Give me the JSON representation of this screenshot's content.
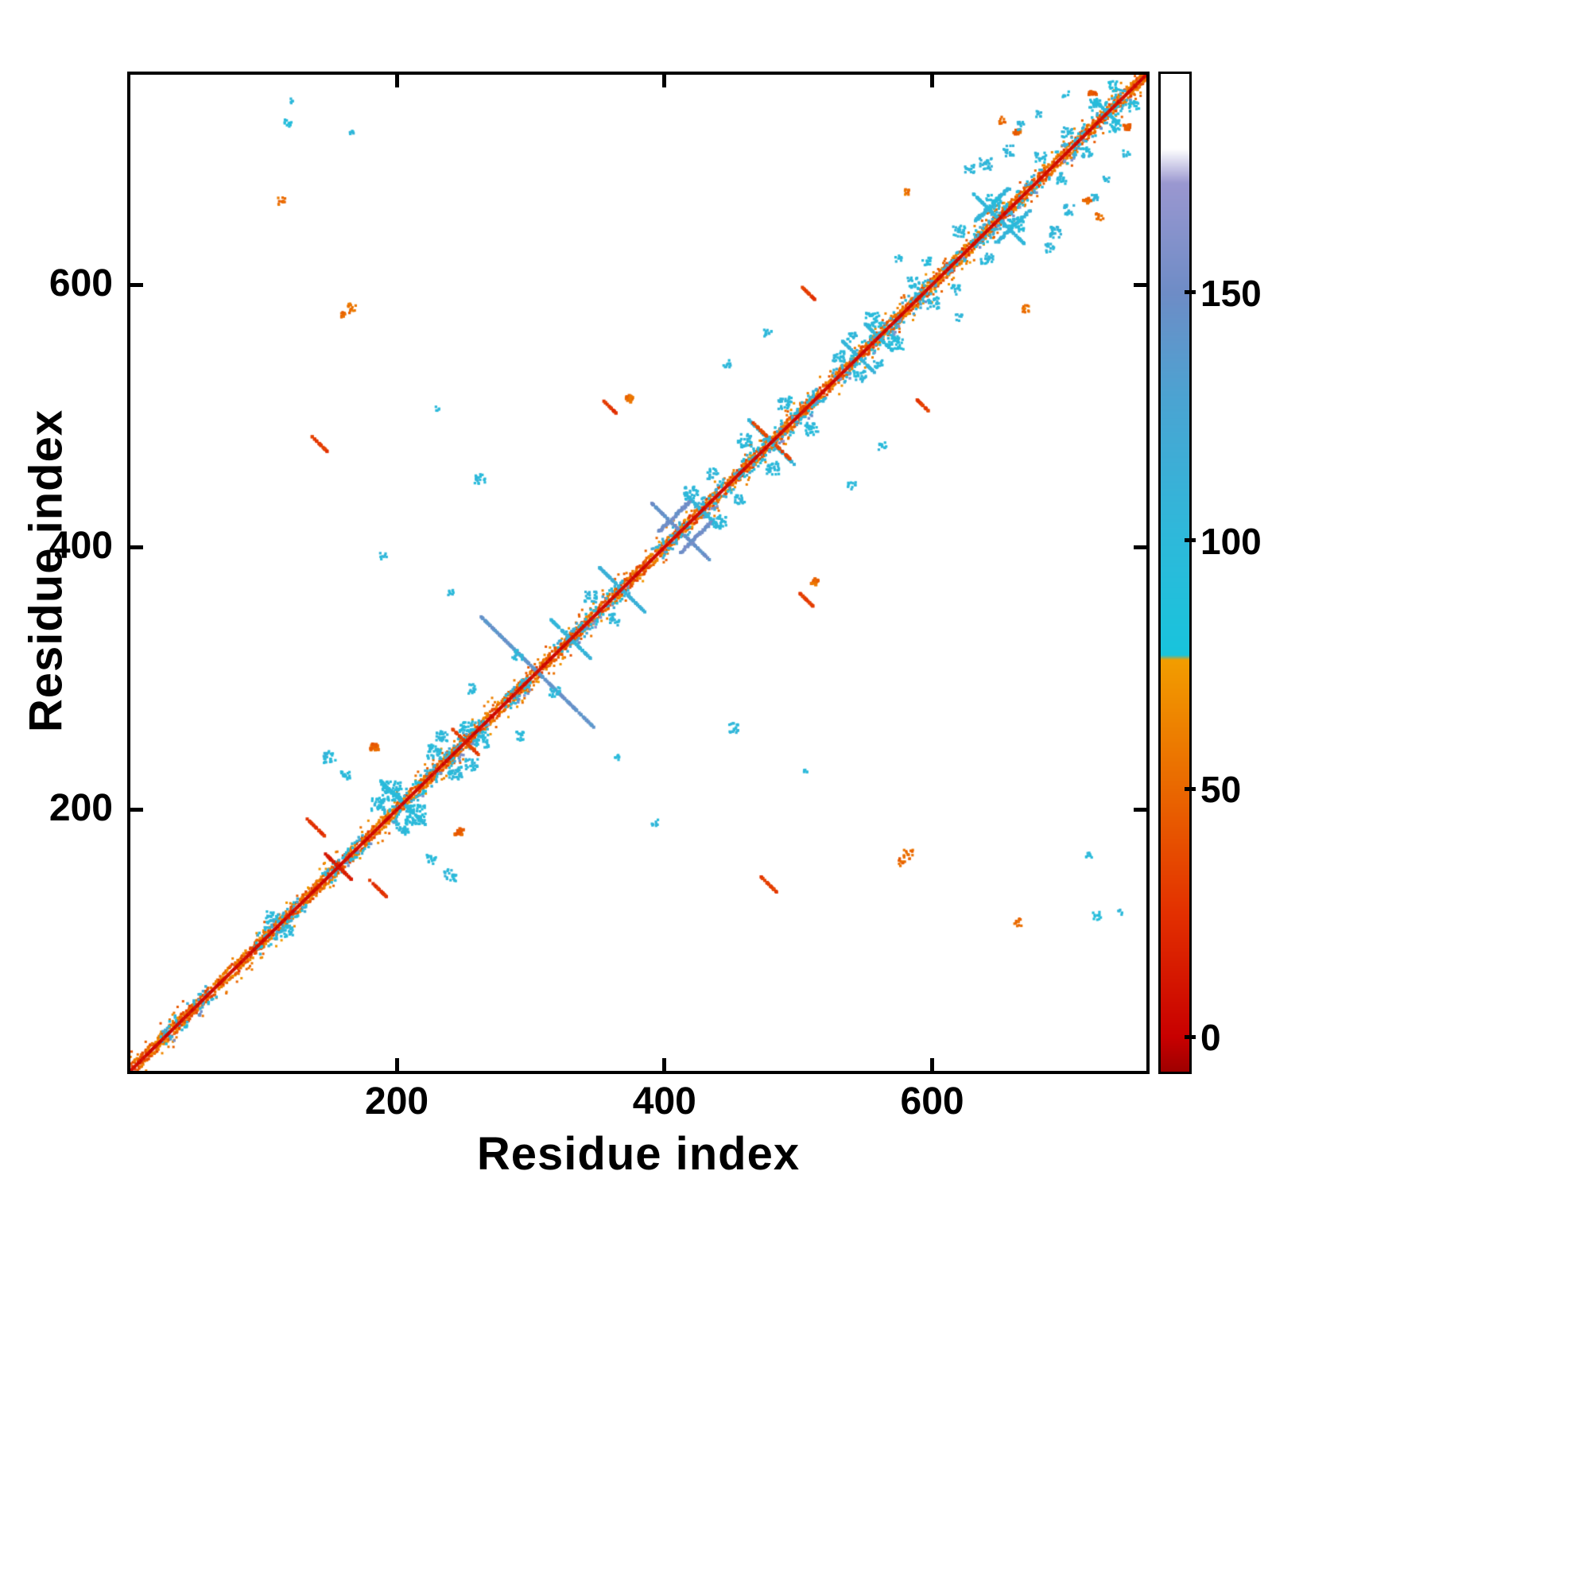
{
  "figure": {
    "background": "#ffffff",
    "border_color": "#000000"
  },
  "chart_data": {
    "type": "heatmap",
    "subtype": "protein-residue-contact-map",
    "title": "",
    "xlabel": "Residue index",
    "ylabel": "Residue index",
    "xlim": [
      1,
      760
    ],
    "ylim": [
      1,
      760
    ],
    "x_ticks": [
      200,
      400,
      600
    ],
    "y_ticks": [
      200,
      400,
      600
    ],
    "grid": false,
    "legend": "colorbar-right",
    "colorbar": {
      "ticks": [
        0,
        50,
        100,
        150
      ],
      "vmin": -7,
      "vmax": 194,
      "colormap_stops": [
        [
          -10,
          "#8c0000"
        ],
        [
          0,
          "#c80000"
        ],
        [
          25,
          "#e33000"
        ],
        [
          52,
          "#ea6c00"
        ],
        [
          76,
          "#f29d00"
        ],
        [
          77,
          "#18c4dc"
        ],
        [
          102,
          "#2fb8da"
        ],
        [
          128,
          "#4aa4d2"
        ],
        [
          150,
          "#6e8cc6"
        ],
        [
          172,
          "#9a97d0"
        ],
        [
          179,
          "#ffffff"
        ],
        [
          200,
          "#ffffff"
        ]
      ]
    },
    "diagonal": {
      "core_value_range": [
        0,
        14
      ],
      "flank_value_range": [
        28,
        72
      ],
      "cyan_segments": [
        [
          24,
          42
        ],
        [
          48,
          62
        ],
        [
          94,
          130
        ],
        [
          148,
          178
        ],
        [
          194,
          232
        ],
        [
          238,
          268
        ],
        [
          280,
          300
        ],
        [
          320,
          352
        ],
        [
          356,
          372
        ],
        [
          394,
          418
        ],
        [
          424,
          448
        ],
        [
          454,
          492
        ],
        [
          496,
          518
        ],
        [
          528,
          548
        ],
        [
          552,
          576
        ],
        [
          582,
          602
        ],
        [
          610,
          624
        ],
        [
          630,
          668
        ],
        [
          672,
          686
        ],
        [
          694,
          718
        ],
        [
          722,
          746
        ]
      ]
    },
    "clusters": [
      {
        "i": 305,
        "j": 305,
        "len": 84,
        "dir": "anti",
        "v": 142,
        "w": 3
      },
      {
        "i": 330,
        "j": 330,
        "len": 30,
        "dir": "anti",
        "v": 108,
        "w": 3
      },
      {
        "i": 368,
        "j": 368,
        "len": 34,
        "dir": "anti",
        "v": 112,
        "w": 3
      },
      {
        "i": 412,
        "j": 412,
        "len": 44,
        "dir": "anti",
        "v": 146,
        "w": 3
      },
      {
        "i": 428,
        "j": 428,
        "len": 26,
        "dir": "anti",
        "v": 106,
        "w": 3
      },
      {
        "i": 408,
        "j": 424,
        "len": 24,
        "dir": "par",
        "v": 150,
        "w": 2.5
      },
      {
        "i": 205,
        "j": 205,
        "len": 34,
        "dir": "anti",
        "v": 100,
        "w": 4
      },
      {
        "i": 480,
        "j": 480,
        "len": 34,
        "dir": "anti",
        "v": 102,
        "w": 4
      },
      {
        "i": 545,
        "j": 545,
        "len": 24,
        "dir": "anti",
        "v": 106,
        "w": 3
      },
      {
        "i": 560,
        "j": 560,
        "len": 20,
        "dir": "anti",
        "v": 104,
        "w": 3
      },
      {
        "i": 650,
        "j": 650,
        "len": 38,
        "dir": "anti",
        "v": 102,
        "w": 4
      },
      {
        "i": 645,
        "j": 661,
        "len": 26,
        "dir": "par",
        "v": 106,
        "w": 3
      },
      {
        "i": 731,
        "j": 731,
        "len": 18,
        "dir": "anti",
        "v": 100,
        "w": 3
      },
      {
        "i": 152,
        "j": 161,
        "len": 11,
        "dir": "anti",
        "v": 16,
        "w": 3
      },
      {
        "i": 140,
        "j": 186,
        "len": 13,
        "dir": "anti",
        "v": 26,
        "w": 3
      },
      {
        "i": 247,
        "j": 256,
        "len": 9,
        "dir": "anti",
        "v": 30,
        "w": 3
      },
      {
        "i": 183,
        "j": 247,
        "len": 9,
        "dir": "dot",
        "v": 48,
        "w": 3
      },
      {
        "i": 360,
        "j": 506,
        "len": 10,
        "dir": "anti",
        "v": 28,
        "w": 3
      },
      {
        "i": 374,
        "j": 513,
        "len": 8,
        "dir": "dot",
        "v": 52,
        "w": 3
      },
      {
        "i": 508,
        "j": 593,
        "len": 9,
        "dir": "anti",
        "v": 30,
        "w": 3
      },
      {
        "i": 143,
        "j": 478,
        "len": 12,
        "dir": "anti",
        "v": 30,
        "w": 3
      },
      {
        "i": 472,
        "j": 489,
        "len": 10,
        "dir": "anti",
        "v": 34,
        "w": 3
      },
      {
        "i": 166,
        "j": 582,
        "len": 7,
        "dir": "scatter",
        "v": 55,
        "w": 3
      },
      {
        "i": 160,
        "j": 577,
        "len": 6,
        "dir": "scatter",
        "v": 50,
        "w": 3
      },
      {
        "i": 582,
        "j": 670,
        "len": 6,
        "dir": "scatter",
        "v": 55,
        "w": 3
      },
      {
        "i": 652,
        "j": 725,
        "len": 6,
        "dir": "scatter",
        "v": 52,
        "w": 3
      },
      {
        "i": 664,
        "j": 716,
        "len": 7,
        "dir": "dot",
        "v": 48,
        "w": 3
      },
      {
        "i": 720,
        "j": 746,
        "len": 7,
        "dir": "dot",
        "v": 46,
        "w": 3
      },
      {
        "i": 114,
        "j": 664,
        "len": 6,
        "dir": "scatter",
        "v": 52,
        "w": 3
      },
      {
        "i": 119,
        "j": 723,
        "len": 6,
        "dir": "scatter",
        "v": 88,
        "w": 3
      },
      {
        "i": 107,
        "j": 118,
        "len": 9,
        "dir": "scatter",
        "v": 100,
        "w": 3
      },
      {
        "i": 150,
        "j": 240,
        "len": 9,
        "dir": "scatter",
        "v": 100,
        "w": 3
      },
      {
        "i": 162,
        "j": 226,
        "len": 7,
        "dir": "scatter",
        "v": 98,
        "w": 3
      },
      {
        "i": 196,
        "j": 214,
        "len": 15,
        "dir": "scatter",
        "v": 96,
        "w": 3
      },
      {
        "i": 186,
        "j": 204,
        "len": 10,
        "dir": "scatter",
        "v": 100,
        "w": 3
      },
      {
        "i": 228,
        "j": 244,
        "len": 11,
        "dir": "scatter",
        "v": 100,
        "w": 3
      },
      {
        "i": 234,
        "j": 256,
        "len": 9,
        "dir": "scatter",
        "v": 102,
        "w": 3
      },
      {
        "i": 252,
        "j": 264,
        "len": 10,
        "dir": "scatter",
        "v": 96,
        "w": 3
      },
      {
        "i": 256,
        "j": 292,
        "len": 7,
        "dir": "scatter",
        "v": 100,
        "w": 3
      },
      {
        "i": 262,
        "j": 452,
        "len": 8,
        "dir": "scatter",
        "v": 100,
        "w": 3
      },
      {
        "i": 240,
        "j": 365,
        "len": 5,
        "dir": "scatter",
        "v": 100,
        "w": 3
      },
      {
        "i": 190,
        "j": 393,
        "len": 5,
        "dir": "scatter",
        "v": 100,
        "w": 3
      },
      {
        "i": 290,
        "j": 318,
        "len": 8,
        "dir": "scatter",
        "v": 100,
        "w": 3
      },
      {
        "i": 345,
        "j": 362,
        "len": 9,
        "dir": "scatter",
        "v": 104,
        "w": 3
      },
      {
        "i": 420,
        "j": 441,
        "len": 10,
        "dir": "scatter",
        "v": 100,
        "w": 3
      },
      {
        "i": 436,
        "j": 456,
        "len": 8,
        "dir": "scatter",
        "v": 104,
        "w": 3
      },
      {
        "i": 460,
        "j": 481,
        "len": 10,
        "dir": "scatter",
        "v": 100,
        "w": 3
      },
      {
        "i": 490,
        "j": 510,
        "len": 10,
        "dir": "scatter",
        "v": 100,
        "w": 3
      },
      {
        "i": 447,
        "j": 540,
        "len": 6,
        "dir": "scatter",
        "v": 100,
        "w": 3
      },
      {
        "i": 477,
        "j": 563,
        "len": 6,
        "dir": "scatter",
        "v": 100,
        "w": 3
      },
      {
        "i": 530,
        "j": 546,
        "len": 9,
        "dir": "scatter",
        "v": 100,
        "w": 3
      },
      {
        "i": 540,
        "j": 560,
        "len": 7,
        "dir": "scatter",
        "v": 102,
        "w": 3
      },
      {
        "i": 556,
        "j": 573,
        "len": 11,
        "dir": "scatter",
        "v": 96,
        "w": 3
      },
      {
        "i": 586,
        "j": 601,
        "len": 9,
        "dir": "scatter",
        "v": 100,
        "w": 3
      },
      {
        "i": 596,
        "j": 618,
        "len": 7,
        "dir": "scatter",
        "v": 100,
        "w": 3
      },
      {
        "i": 575,
        "j": 620,
        "len": 5,
        "dir": "scatter",
        "v": 100,
        "w": 3
      },
      {
        "i": 620,
        "j": 641,
        "len": 9,
        "dir": "scatter",
        "v": 100,
        "w": 3
      },
      {
        "i": 646,
        "j": 663,
        "len": 11,
        "dir": "scatter",
        "v": 96,
        "w": 3
      },
      {
        "i": 628,
        "j": 688,
        "len": 7,
        "dir": "scatter",
        "v": 104,
        "w": 3
      },
      {
        "i": 640,
        "j": 692,
        "len": 9,
        "dir": "scatter",
        "v": 104,
        "w": 3
      },
      {
        "i": 657,
        "j": 702,
        "len": 8,
        "dir": "scatter",
        "v": 104,
        "w": 3
      },
      {
        "i": 667,
        "j": 721,
        "len": 6,
        "dir": "scatter",
        "v": 104,
        "w": 3
      },
      {
        "i": 680,
        "j": 730,
        "len": 5,
        "dir": "scatter",
        "v": 102,
        "w": 3
      },
      {
        "i": 681,
        "j": 697,
        "len": 8,
        "dir": "scatter",
        "v": 100,
        "w": 3
      },
      {
        "i": 700,
        "j": 745,
        "len": 5,
        "dir": "scatter",
        "v": 100,
        "w": 3
      },
      {
        "i": 701,
        "j": 716,
        "len": 8,
        "dir": "scatter",
        "v": 100,
        "w": 3
      },
      {
        "i": 721,
        "j": 737,
        "len": 9,
        "dir": "scatter",
        "v": 95,
        "w": 3
      },
      {
        "i": 736,
        "j": 751,
        "len": 8,
        "dir": "scatter",
        "v": 92,
        "w": 3
      },
      {
        "i": 122,
        "j": 740,
        "len": 4,
        "dir": "scatter",
        "v": 100,
        "w": 3
      },
      {
        "i": 166,
        "j": 717,
        "len": 5,
        "dir": "scatter",
        "v": 100,
        "w": 3
      },
      {
        "i": 230,
        "j": 505,
        "len": 4,
        "dir": "scatter",
        "v": 100,
        "w": 3
      }
    ]
  }
}
